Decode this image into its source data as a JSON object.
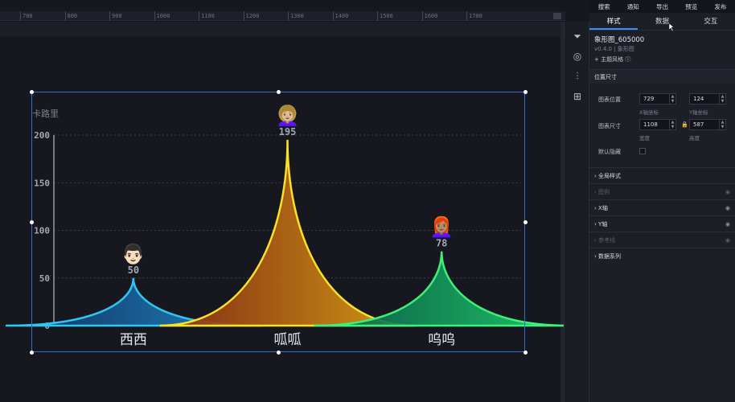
{
  "ruler": {
    "ticks": [
      "700",
      "800",
      "900",
      "1000",
      "1100",
      "1200",
      "1300",
      "1400",
      "1500",
      "1600",
      "1700"
    ]
  },
  "topmenu": {
    "items": [
      "搜索",
      "通知",
      "导出",
      "预览",
      "发布"
    ]
  },
  "tabs": [
    {
      "label": "样式"
    },
    {
      "label": "数据"
    },
    {
      "label": "交互"
    }
  ],
  "component": {
    "name": "象形图_605000",
    "version": "v0.4.0 | 象形图",
    "theme_style": "+ 主题风格"
  },
  "position": {
    "title": "位置尺寸",
    "chart_position_label": "图表位置",
    "x_value": "729",
    "x_label": "X轴坐标",
    "y_value": "124",
    "y_label": "Y轴坐标",
    "chart_size_label": "图表尺寸",
    "width_value": "1108",
    "width_label": "宽度",
    "height_value": "587",
    "height_label": "高度",
    "hidden_label": "默认隐藏"
  },
  "sections": [
    {
      "label": "全局样式",
      "dim": false,
      "toggle": false
    },
    {
      "label": "图例",
      "dim": true,
      "toggle": true
    },
    {
      "label": "X轴",
      "dim": false,
      "toggle": true
    },
    {
      "label": "Y轴",
      "dim": false,
      "toggle": true
    },
    {
      "label": "参考线",
      "dim": true,
      "toggle": true
    },
    {
      "label": "数据系列",
      "dim": false,
      "toggle": false
    }
  ],
  "chart_data": {
    "type": "bar",
    "title": "",
    "ylabel": "卡路里",
    "ylim": [
      0,
      200
    ],
    "yticks": [
      0,
      50,
      100,
      150,
      200
    ],
    "categories": [
      "西西",
      "呱呱",
      "呜呜"
    ],
    "values": [
      50,
      195,
      78
    ],
    "value_labels": [
      "50",
      "195",
      "78"
    ],
    "icons": [
      "👨🏻",
      "👩🏼‍🦱",
      "👩🏽‍🦰"
    ],
    "colors": [
      {
        "stroke": "#2ec8f0",
        "top": "#1f8fd0",
        "bottom": "#12305f"
      },
      {
        "stroke": "#f7e12a",
        "top": "#e3a614",
        "bottom": "#8a2b12"
      },
      {
        "stroke": "#3df07a",
        "top": "#1fd46c",
        "bottom": "#0a5a4a"
      }
    ],
    "grid": true
  }
}
